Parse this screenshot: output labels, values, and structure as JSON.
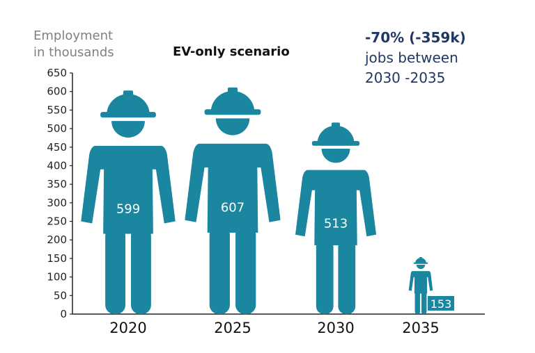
{
  "chart_data": {
    "type": "bar",
    "title": "EV-only scenario",
    "ylabel_line1": "Employment",
    "ylabel_line2": "in thousands",
    "categories": [
      "2020",
      "2025",
      "2030",
      "2035"
    ],
    "values": [
      599,
      607,
      513,
      153
    ],
    "ylim": [
      0,
      650
    ],
    "yticks": [
      0,
      50,
      100,
      150,
      200,
      250,
      300,
      350,
      400,
      450,
      500,
      550,
      600,
      650
    ],
    "grid": false,
    "mark": "worker-with-hard-hat-icon",
    "annotation": {
      "highlight": "-70% (-359k)",
      "line2": "jobs between",
      "line3": "2030 -2035"
    }
  },
  "colors": {
    "figure": "#1b86a0",
    "axis": "#222222",
    "annotation": "#1f3864"
  }
}
